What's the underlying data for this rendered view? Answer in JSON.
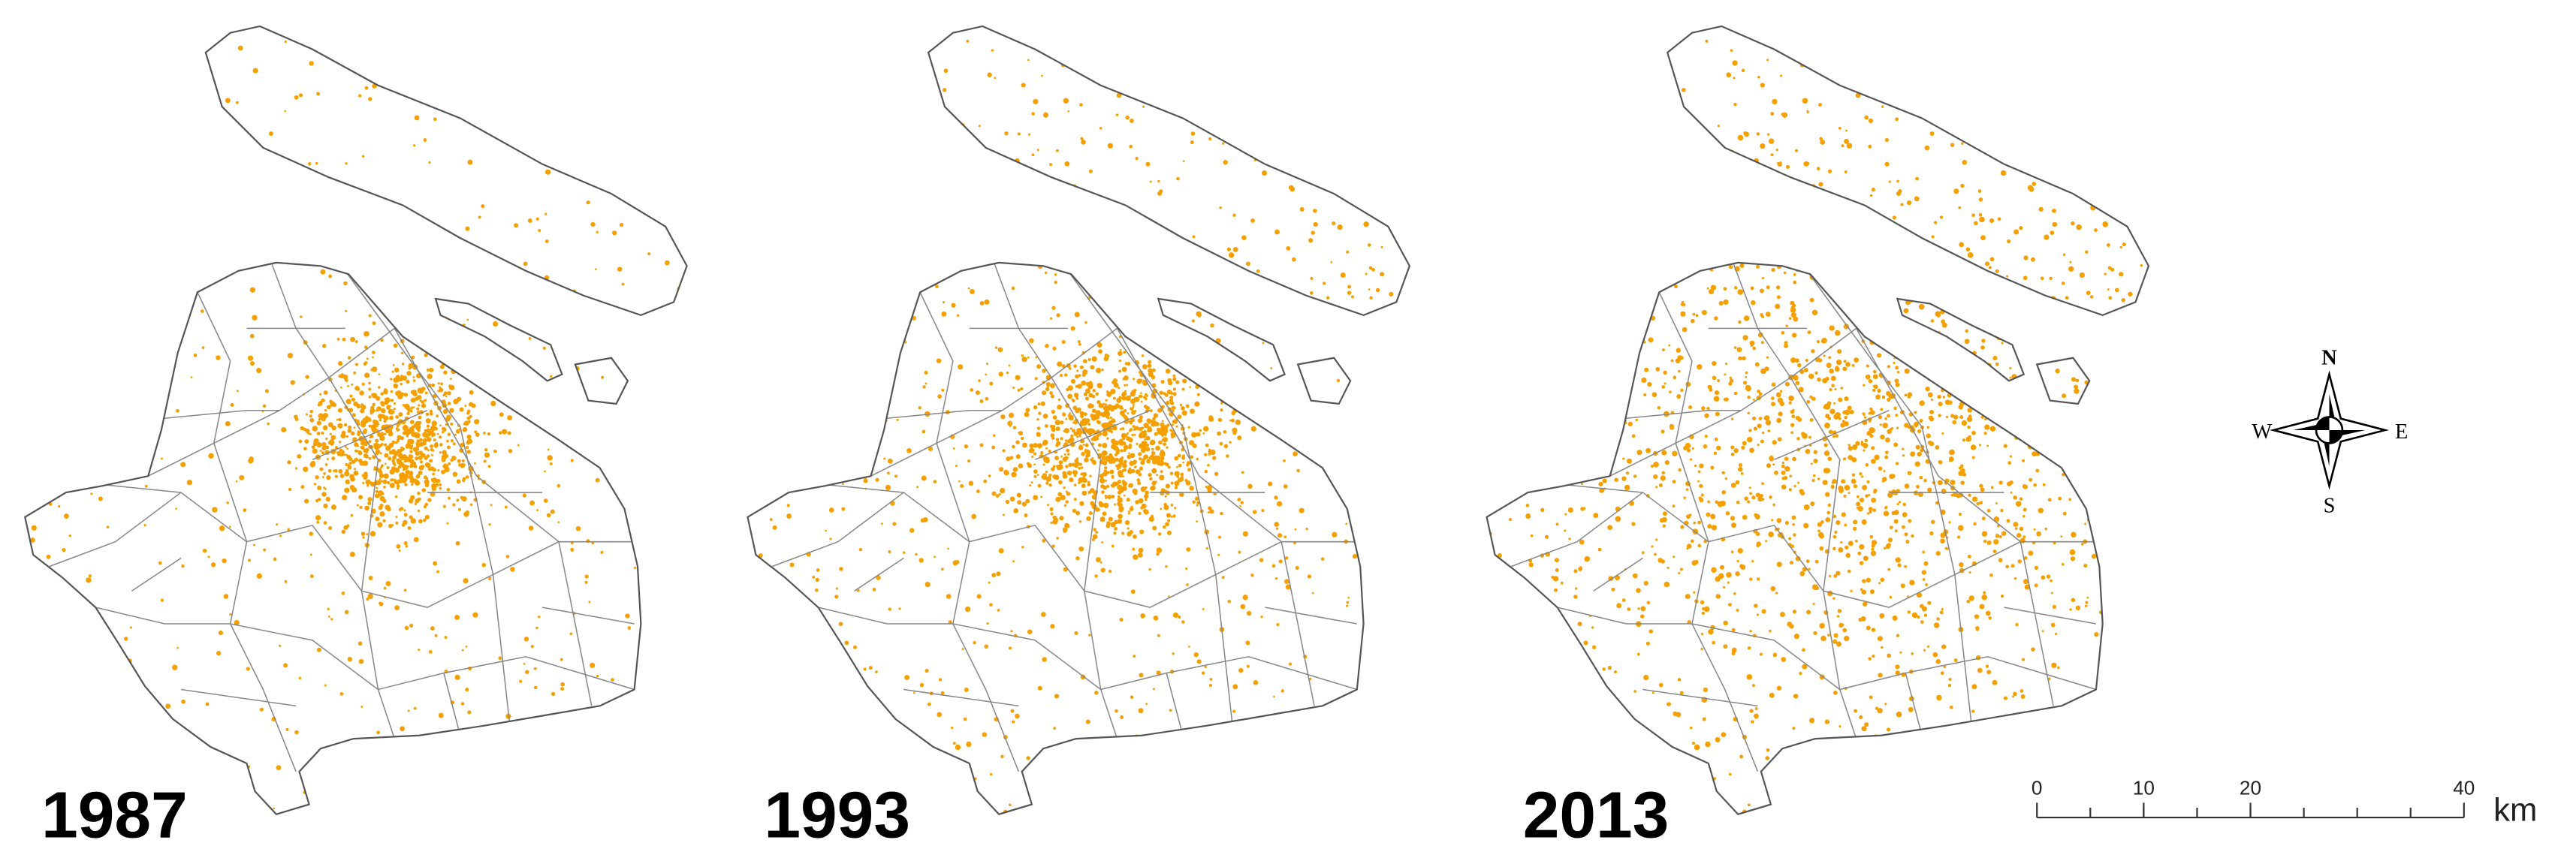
{
  "panels": [
    {
      "year": "1987"
    },
    {
      "year": "1993"
    },
    {
      "year": "2013"
    }
  ],
  "compass": {
    "north": "N",
    "south": "S",
    "west": "W",
    "east": "E"
  },
  "scale_bar": {
    "ticks": [
      0,
      10,
      20,
      40
    ],
    "unit": "km"
  }
}
